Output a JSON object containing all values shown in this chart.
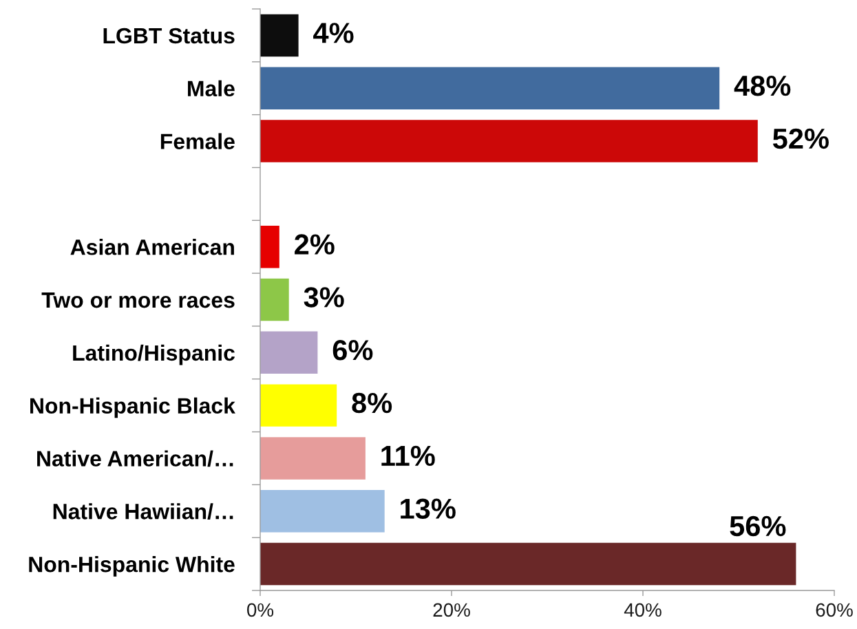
{
  "chart_data": {
    "type": "bar",
    "orientation": "horizontal",
    "categories": [
      "LGBT Status",
      "Male",
      "Female",
      null,
      "Asian American",
      "Two or more races",
      "Latino/Hispanic",
      "Non-Hispanic Black",
      "Native American/…",
      "Native Hawiian/…",
      "Non-Hispanic White"
    ],
    "values": [
      4,
      48,
      52,
      null,
      2,
      3,
      6,
      8,
      11,
      13,
      56
    ],
    "colors": [
      "#0d0d0d",
      "#416b9e",
      "#cc0808",
      null,
      "#e60000",
      "#8dc748",
      "#b4a3c8",
      "#ffff00",
      "#e69c9b",
      "#9fbfe3",
      "#6a2828"
    ],
    "value_labels": [
      "4%",
      "48%",
      "52%",
      null,
      "2%",
      "3%",
      "6%",
      "8%",
      "11%",
      "13%",
      "56%"
    ],
    "xlim": [
      0,
      60
    ],
    "xticks": [
      {
        "value": 0,
        "label": "0%"
      },
      {
        "value": 20,
        "label": "20%"
      },
      {
        "value": 40,
        "label": "40%"
      },
      {
        "value": 60,
        "label": "60%"
      }
    ],
    "grid": false
  }
}
